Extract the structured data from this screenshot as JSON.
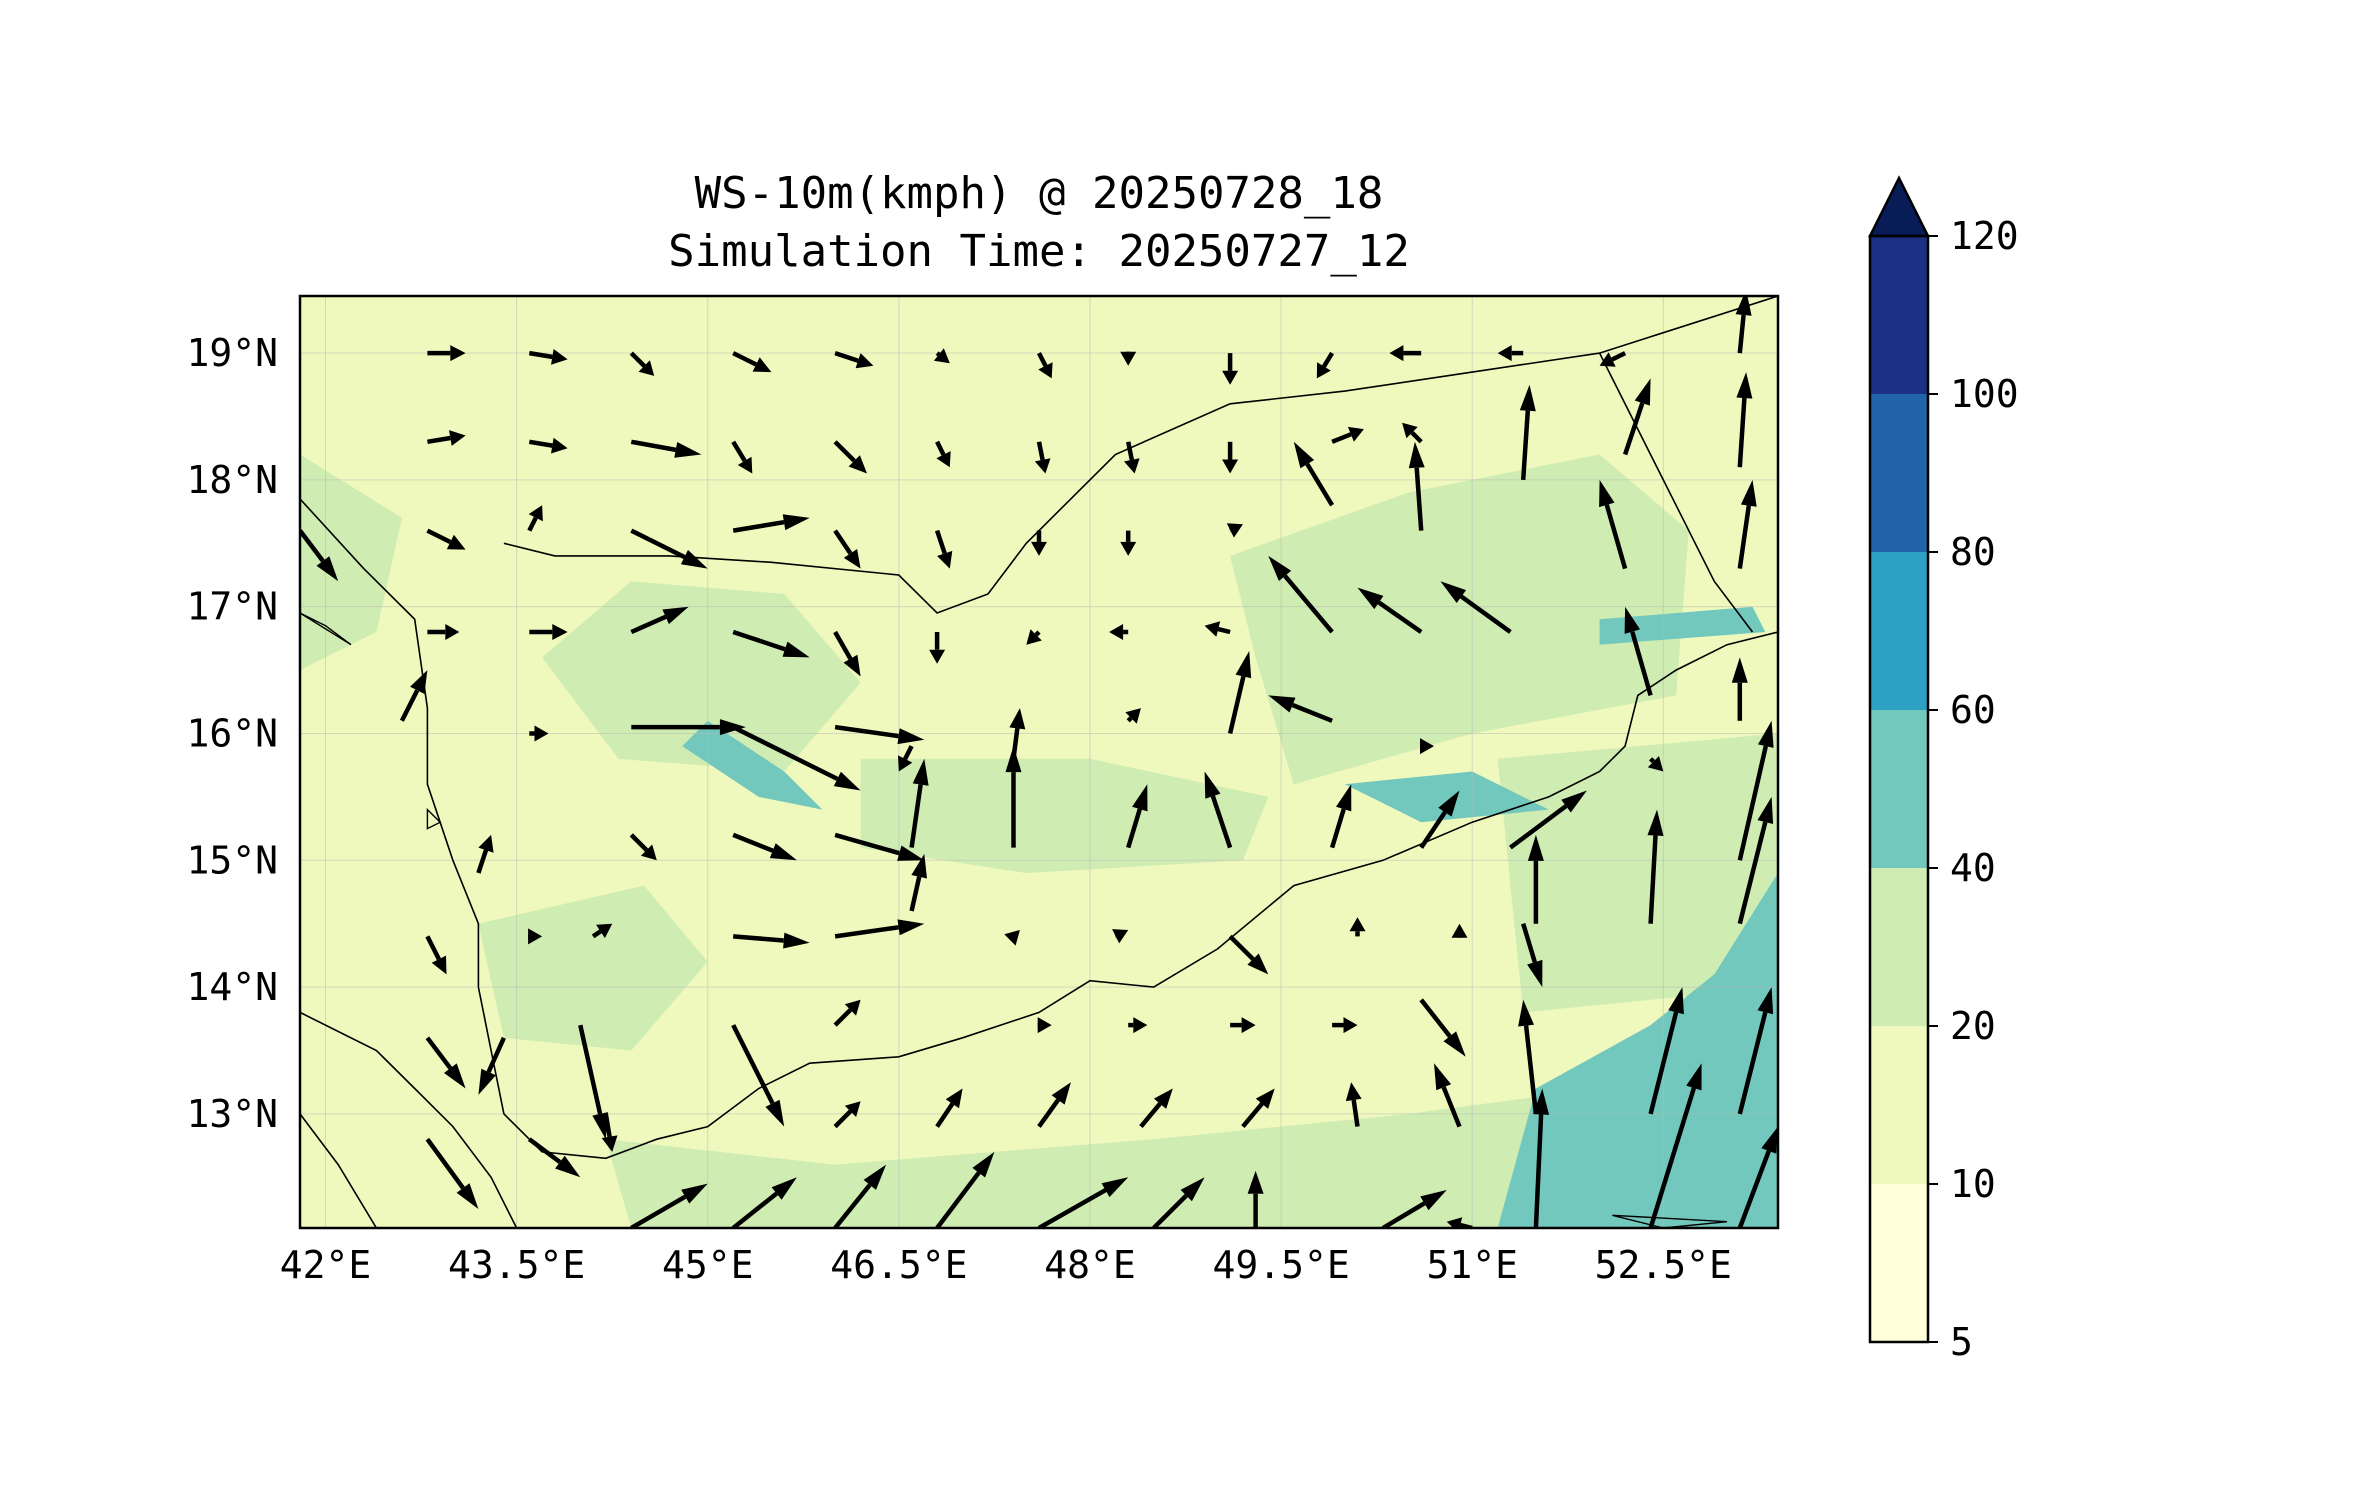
{
  "title": {
    "line1": "WS-10m(kmph) @ 20250728_18",
    "line2": "Simulation Time: 20250727_12"
  },
  "map": {
    "lon_range": [
      41.8,
      53.4
    ],
    "lat_range": [
      12.1,
      19.45
    ],
    "x_ticks": [
      {
        "value": 42,
        "label": "42°E"
      },
      {
        "value": 43.5,
        "label": "43.5°E"
      },
      {
        "value": 45,
        "label": "45°E"
      },
      {
        "value": 46.5,
        "label": "46.5°E"
      },
      {
        "value": 48,
        "label": "48°E"
      },
      {
        "value": 49.5,
        "label": "49.5°E"
      },
      {
        "value": 51,
        "label": "51°E"
      },
      {
        "value": 52.5,
        "label": "52.5°E"
      }
    ],
    "y_ticks": [
      {
        "value": 19,
        "label": "19°N"
      },
      {
        "value": 18,
        "label": "18°N"
      },
      {
        "value": 17,
        "label": "17°N"
      },
      {
        "value": 16,
        "label": "16°N"
      },
      {
        "value": 15,
        "label": "15°N"
      },
      {
        "value": 14,
        "label": "14°N"
      },
      {
        "value": 13,
        "label": "13°N"
      }
    ],
    "gridlines": true,
    "base_color": "#eff8bd",
    "field_zones": [
      {
        "level": "20-40",
        "color": "#cfecb3",
        "points": [
          [
            49.1,
            17.4
          ],
          [
            50.5,
            17.9
          ],
          [
            52.0,
            18.2
          ],
          [
            52.7,
            17.6
          ],
          [
            52.6,
            16.3
          ],
          [
            51.0,
            16.0
          ],
          [
            49.6,
            15.6
          ],
          [
            49.3,
            16.6
          ]
        ]
      },
      {
        "level": "20-40",
        "color": "#cfecb3",
        "points": [
          [
            44.4,
            17.2
          ],
          [
            45.6,
            17.1
          ],
          [
            46.2,
            16.4
          ],
          [
            45.6,
            15.7
          ],
          [
            44.3,
            15.8
          ],
          [
            43.7,
            16.6
          ]
        ]
      },
      {
        "level": "20-40",
        "color": "#cfecb3",
        "points": [
          [
            46.2,
            15.8
          ],
          [
            48.0,
            15.8
          ],
          [
            49.4,
            15.5
          ],
          [
            49.2,
            15.0
          ],
          [
            47.5,
            14.9
          ],
          [
            46.2,
            15.1
          ]
        ]
      },
      {
        "level": "20-40",
        "color": "#cfecb3",
        "points": [
          [
            43.2,
            14.5
          ],
          [
            44.5,
            14.8
          ],
          [
            45.0,
            14.2
          ],
          [
            44.4,
            13.5
          ],
          [
            43.4,
            13.6
          ]
        ]
      },
      {
        "level": "20-40",
        "color": "#cfecb3",
        "points": [
          [
            44.2,
            12.8
          ],
          [
            46.0,
            12.6
          ],
          [
            48.5,
            12.8
          ],
          [
            50.5,
            13.0
          ],
          [
            52.0,
            13.2
          ],
          [
            53.4,
            13.4
          ],
          [
            53.4,
            12.1
          ],
          [
            44.4,
            12.1
          ]
        ]
      },
      {
        "level": "20-40",
        "color": "#cfecb3",
        "points": [
          [
            51.2,
            15.8
          ],
          [
            53.4,
            16.0
          ],
          [
            53.4,
            14.0
          ],
          [
            51.4,
            13.8
          ]
        ]
      },
      {
        "level": "20-40",
        "color": "#cfecb3",
        "points": [
          [
            41.8,
            18.2
          ],
          [
            42.6,
            17.7
          ],
          [
            42.4,
            16.8
          ],
          [
            41.8,
            16.5
          ]
        ]
      },
      {
        "level": "40-60",
        "color": "#73c8bd",
        "points": [
          [
            51.2,
            12.1
          ],
          [
            51.5,
            13.2
          ],
          [
            52.4,
            13.7
          ],
          [
            52.9,
            14.1
          ],
          [
            53.4,
            14.9
          ],
          [
            53.4,
            12.1
          ]
        ]
      },
      {
        "level": "40-60",
        "color": "#73c8bd",
        "points": [
          [
            45.0,
            16.1
          ],
          [
            45.6,
            15.7
          ],
          [
            45.9,
            15.4
          ],
          [
            45.4,
            15.5
          ],
          [
            44.8,
            15.9
          ]
        ]
      },
      {
        "level": "40-60",
        "color": "#73c8bd",
        "points": [
          [
            50.0,
            15.6
          ],
          [
            51.0,
            15.7
          ],
          [
            51.6,
            15.4
          ],
          [
            50.6,
            15.3
          ]
        ]
      },
      {
        "level": "40-60",
        "color": "#73c8bd",
        "points": [
          [
            52.0,
            16.9
          ],
          [
            53.2,
            17.0
          ],
          [
            53.3,
            16.8
          ],
          [
            52.0,
            16.7
          ]
        ]
      }
    ],
    "coastline": [
      [
        41.8,
        17.85
      ],
      [
        42.3,
        17.3
      ],
      [
        42.7,
        16.9
      ],
      [
        42.8,
        16.2
      ],
      [
        42.8,
        15.6
      ],
      [
        43.0,
        15.0
      ],
      [
        43.2,
        14.5
      ],
      [
        43.2,
        14.0
      ],
      [
        43.3,
        13.5
      ],
      [
        43.4,
        13.0
      ],
      [
        43.7,
        12.7
      ],
      [
        44.2,
        12.65
      ],
      [
        44.6,
        12.8
      ],
      [
        45.0,
        12.9
      ],
      [
        45.4,
        13.2
      ],
      [
        45.8,
        13.4
      ],
      [
        46.5,
        13.45
      ],
      [
        47.0,
        13.6
      ],
      [
        47.6,
        13.8
      ],
      [
        48.0,
        14.05
      ],
      [
        48.5,
        14.0
      ],
      [
        49.0,
        14.3
      ],
      [
        49.6,
        14.8
      ],
      [
        50.3,
        15.0
      ],
      [
        51.0,
        15.3
      ],
      [
        51.6,
        15.5
      ],
      [
        52.0,
        15.7
      ],
      [
        52.2,
        15.9
      ],
      [
        52.3,
        16.3
      ],
      [
        52.6,
        16.5
      ],
      [
        53.0,
        16.7
      ],
      [
        53.4,
        16.8
      ]
    ],
    "borders": [
      [
        [
          43.4,
          17.5
        ],
        [
          43.8,
          17.4
        ],
        [
          44.7,
          17.4
        ],
        [
          45.5,
          17.35
        ],
        [
          46.5,
          17.25
        ],
        [
          46.8,
          16.95
        ],
        [
          47.2,
          17.1
        ],
        [
          47.5,
          17.5
        ],
        [
          48.2,
          18.2
        ],
        [
          49.1,
          18.6
        ],
        [
          50.0,
          18.7
        ],
        [
          51.0,
          18.85
        ],
        [
          52.0,
          19.0
        ],
        [
          53.4,
          19.45
        ]
      ],
      [
        [
          52.0,
          19.0
        ],
        [
          52.5,
          18.0
        ],
        [
          52.9,
          17.2
        ],
        [
          53.2,
          16.8
        ]
      ],
      [
        [
          41.8,
          13.8
        ],
        [
          42.4,
          13.5
        ],
        [
          42.7,
          13.2
        ],
        [
          43.0,
          12.9
        ],
        [
          43.3,
          12.5
        ],
        [
          43.5,
          12.1
        ]
      ],
      [
        [
          41.8,
          13.0
        ],
        [
          42.1,
          12.6
        ],
        [
          42.4,
          12.1
        ]
      ]
    ],
    "islands": [
      [
        [
          41.8,
          16.95
        ],
        [
          42.2,
          16.7
        ],
        [
          42.0,
          16.85
        ]
      ],
      [
        [
          42.8,
          15.4
        ],
        [
          42.9,
          15.3
        ],
        [
          42.8,
          15.25
        ]
      ],
      [
        [
          52.1,
          12.2
        ],
        [
          53.0,
          12.15
        ],
        [
          52.5,
          12.1
        ]
      ]
    ],
    "wind_vectors": [
      [
        42.8,
        19.0,
        0.3,
        0.0
      ],
      [
        43.6,
        19.0,
        0.3,
        -0.05
      ],
      [
        44.4,
        19.0,
        0.18,
        -0.18
      ],
      [
        45.2,
        19.0,
        0.3,
        -0.15
      ],
      [
        46.0,
        19.0,
        0.3,
        -0.1
      ],
      [
        46.8,
        19.0,
        0.1,
        -0.08
      ],
      [
        47.6,
        19.0,
        0.1,
        -0.2
      ],
      [
        48.3,
        19.0,
        0.0,
        -0.1
      ],
      [
        49.1,
        19.0,
        0.0,
        -0.25
      ],
      [
        49.9,
        19.0,
        -0.12,
        -0.2
      ],
      [
        50.6,
        19.0,
        -0.25,
        0.0
      ],
      [
        51.4,
        19.0,
        -0.2,
        0.0
      ],
      [
        52.2,
        19.0,
        -0.2,
        -0.1
      ],
      [
        53.1,
        19.0,
        0.05,
        0.5
      ],
      [
        42.8,
        18.3,
        0.3,
        0.05
      ],
      [
        43.6,
        18.3,
        0.3,
        -0.05
      ],
      [
        44.4,
        18.3,
        0.55,
        -0.1
      ],
      [
        45.2,
        18.3,
        0.15,
        -0.25
      ],
      [
        46.0,
        18.3,
        0.25,
        -0.25
      ],
      [
        46.8,
        18.3,
        0.1,
        -0.2
      ],
      [
        47.6,
        18.3,
        0.05,
        -0.25
      ],
      [
        48.3,
        18.3,
        0.05,
        -0.25
      ],
      [
        49.1,
        18.3,
        0.0,
        -0.25
      ],
      [
        49.9,
        18.3,
        0.25,
        0.1
      ],
      [
        50.6,
        18.3,
        -0.15,
        0.15
      ],
      [
        51.4,
        18.0,
        0.05,
        0.75
      ],
      [
        52.2,
        18.2,
        0.2,
        0.6
      ],
      [
        53.1,
        18.1,
        0.05,
        0.75
      ],
      [
        42.8,
        17.6,
        0.3,
        -0.15
      ],
      [
        43.6,
        17.6,
        0.1,
        0.2
      ],
      [
        44.4,
        17.6,
        0.6,
        -0.3
      ],
      [
        45.2,
        17.6,
        0.6,
        0.1
      ],
      [
        46.0,
        17.6,
        0.2,
        -0.3
      ],
      [
        46.8,
        17.6,
        0.1,
        -0.3
      ],
      [
        47.6,
        17.6,
        0.0,
        -0.2
      ],
      [
        48.3,
        17.6,
        0.0,
        -0.2
      ],
      [
        49.1,
        17.6,
        0.1,
        0.05
      ],
      [
        49.9,
        17.8,
        -0.3,
        0.5
      ],
      [
        50.6,
        17.6,
        -0.05,
        0.7
      ],
      [
        52.2,
        17.3,
        -0.2,
        0.7
      ],
      [
        53.1,
        17.3,
        0.1,
        0.7
      ],
      [
        41.8,
        17.6,
        0.3,
        -0.4
      ],
      [
        42.8,
        16.8,
        0.25,
        0.0
      ],
      [
        43.6,
        16.8,
        0.3,
        0.0
      ],
      [
        44.4,
        16.8,
        0.45,
        0.2
      ],
      [
        45.2,
        16.8,
        0.6,
        -0.2
      ],
      [
        46.0,
        16.8,
        0.2,
        -0.35
      ],
      [
        46.8,
        16.8,
        0.0,
        -0.25
      ],
      [
        47.6,
        16.8,
        -0.1,
        -0.1
      ],
      [
        48.3,
        16.8,
        -0.15,
        0.0
      ],
      [
        49.1,
        16.8,
        -0.2,
        0.05
      ],
      [
        49.9,
        16.8,
        -0.5,
        0.6
      ],
      [
        50.6,
        16.8,
        -0.5,
        0.35
      ],
      [
        51.3,
        16.8,
        -0.55,
        0.4
      ],
      [
        52.4,
        16.3,
        -0.2,
        0.7
      ],
      [
        53.1,
        16.1,
        0.0,
        0.5
      ],
      [
        42.6,
        16.1,
        0.2,
        0.4
      ],
      [
        43.6,
        16.0,
        0.15,
        0.0
      ],
      [
        44.4,
        16.05,
        0.9,
        0.0
      ],
      [
        45.2,
        16.05,
        1.0,
        -0.5
      ],
      [
        46.0,
        16.05,
        0.7,
        -0.1
      ],
      [
        46.6,
        15.9,
        -0.1,
        -0.2
      ],
      [
        47.4,
        15.8,
        0.05,
        0.4
      ],
      [
        48.3,
        16.1,
        0.1,
        0.1
      ],
      [
        49.1,
        16.0,
        0.15,
        0.65
      ],
      [
        49.9,
        16.1,
        -0.5,
        0.2
      ],
      [
        50.6,
        15.9,
        0.1,
        0.0
      ],
      [
        52.4,
        15.8,
        0.1,
        -0.1
      ],
      [
        53.1,
        15.0,
        0.25,
        1.1
      ],
      [
        43.2,
        14.9,
        0.1,
        0.3
      ],
      [
        44.4,
        15.2,
        0.2,
        -0.2
      ],
      [
        45.2,
        15.2,
        0.5,
        -0.2
      ],
      [
        46.0,
        15.2,
        0.7,
        -0.2
      ],
      [
        46.6,
        14.6,
        0.1,
        0.45
      ],
      [
        46.6,
        15.1,
        0.1,
        0.7
      ],
      [
        47.4,
        15.1,
        0.0,
        0.8
      ],
      [
        48.3,
        15.1,
        0.15,
        0.5
      ],
      [
        49.1,
        15.1,
        -0.2,
        0.6
      ],
      [
        49.9,
        15.1,
        0.15,
        0.5
      ],
      [
        50.6,
        15.1,
        0.3,
        0.45
      ],
      [
        51.3,
        15.1,
        0.6,
        0.45
      ],
      [
        51.5,
        14.5,
        0.0,
        0.7
      ],
      [
        52.4,
        14.5,
        0.05,
        0.9
      ],
      [
        53.1,
        14.5,
        0.25,
        1.0
      ],
      [
        42.8,
        14.4,
        0.15,
        -0.3
      ],
      [
        43.6,
        14.4,
        0.1,
        0.0
      ],
      [
        44.1,
        14.4,
        0.15,
        0.1
      ],
      [
        45.2,
        14.4,
        0.6,
        -0.05
      ],
      [
        46.0,
        14.4,
        0.7,
        0.1
      ],
      [
        47.4,
        14.4,
        0.05,
        0.05
      ],
      [
        48.2,
        14.4,
        0.1,
        0.05
      ],
      [
        49.1,
        14.4,
        0.3,
        -0.3
      ],
      [
        50.1,
        14.4,
        0.0,
        0.15
      ],
      [
        50.9,
        14.4,
        0.0,
        0.1
      ],
      [
        51.4,
        14.5,
        0.15,
        -0.5
      ],
      [
        42.8,
        13.6,
        0.3,
        -0.4
      ],
      [
        43.4,
        13.6,
        -0.2,
        -0.45
      ],
      [
        44.0,
        13.7,
        0.2,
        -0.9
      ],
      [
        45.2,
        13.7,
        0.4,
        -0.8
      ],
      [
        46.0,
        13.7,
        0.2,
        0.2
      ],
      [
        47.6,
        13.7,
        0.1,
        0.0
      ],
      [
        48.3,
        13.7,
        0.15,
        0.0
      ],
      [
        49.1,
        13.7,
        0.2,
        0.0
      ],
      [
        49.9,
        13.7,
        0.2,
        0.0
      ],
      [
        50.6,
        13.9,
        0.35,
        -0.45
      ],
      [
        51.5,
        13.0,
        -0.1,
        0.9
      ],
      [
        52.4,
        13.0,
        0.25,
        1.0
      ],
      [
        53.1,
        13.0,
        0.25,
        1.0
      ],
      [
        42.8,
        12.8,
        0.4,
        -0.55
      ],
      [
        43.6,
        12.8,
        0.4,
        -0.3
      ],
      [
        44.2,
        13.0,
        0.05,
        -0.3
      ],
      [
        46.0,
        12.9,
        0.2,
        0.2
      ],
      [
        46.8,
        12.9,
        0.2,
        0.3
      ],
      [
        47.6,
        12.9,
        0.25,
        0.35
      ],
      [
        48.4,
        12.9,
        0.25,
        0.3
      ],
      [
        49.2,
        12.9,
        0.25,
        0.3
      ],
      [
        50.1,
        12.9,
        -0.05,
        0.35
      ],
      [
        50.9,
        12.9,
        -0.2,
        0.5
      ],
      [
        52.4,
        12.1,
        0.4,
        1.3
      ],
      [
        44.4,
        12.1,
        0.6,
        0.35
      ],
      [
        45.2,
        12.1,
        0.5,
        0.4
      ],
      [
        46.0,
        12.1,
        0.4,
        0.5
      ],
      [
        46.8,
        12.1,
        0.45,
        0.6
      ],
      [
        47.6,
        12.1,
        0.7,
        0.4
      ],
      [
        48.5,
        12.1,
        0.4,
        0.4
      ],
      [
        49.3,
        12.1,
        0.0,
        0.45
      ],
      [
        50.3,
        12.1,
        0.5,
        0.3
      ],
      [
        51.0,
        12.1,
        -0.2,
        0.05
      ],
      [
        51.5,
        12.1,
        0.05,
        1.1
      ],
      [
        53.1,
        12.1,
        0.3,
        0.8
      ]
    ]
  },
  "colorbar": {
    "levels": [
      {
        "label": "5",
        "color": "#ffffd9"
      },
      {
        "label": "10",
        "color": "#eff8bd"
      },
      {
        "label": "20",
        "color": "#cfecb3"
      },
      {
        "label": "40",
        "color": "#73c8bd"
      },
      {
        "label": "60",
        "color": "#2ca1c2"
      },
      {
        "label": "80",
        "color": "#2164aa"
      },
      {
        "label": "100",
        "color": "#1b2f83"
      },
      {
        "label": "120",
        "color": "#081d58"
      }
    ],
    "extend_color": "#081d58"
  }
}
